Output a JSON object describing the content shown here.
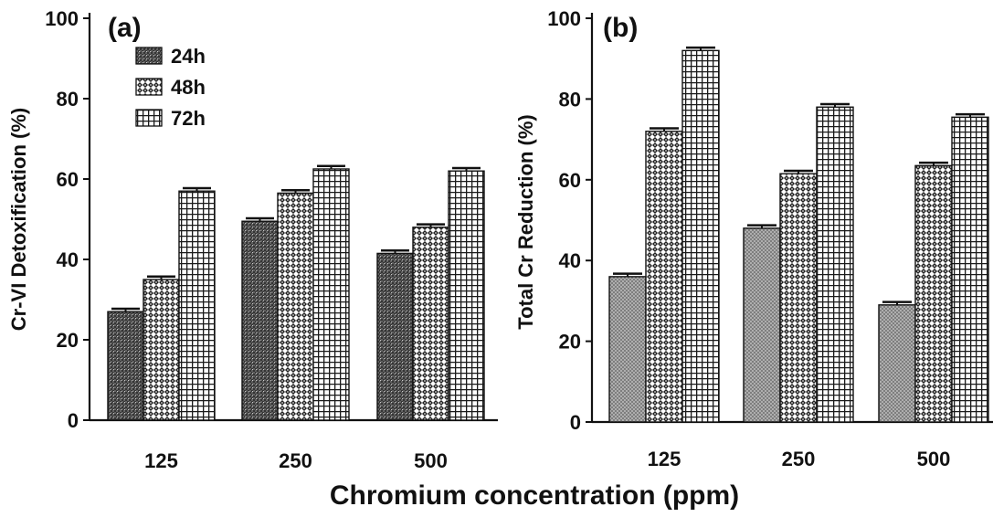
{
  "figure": {
    "xaxis_title": "Chromium concentration (ppm)"
  },
  "legend": {
    "items": [
      {
        "label": "24h",
        "pattern": "fine-crosshatch"
      },
      {
        "label": "48h",
        "pattern": "checker"
      },
      {
        "label": "72h",
        "pattern": "grid"
      }
    ]
  },
  "chart_data": [
    {
      "panel": "(a)",
      "type": "bar",
      "ylabel": "Cr-VI Detoxification (%)",
      "xlabel": "Chromium concentration (ppm)",
      "categories": [
        "125",
        "250",
        "500"
      ],
      "ylim": [
        0,
        100
      ],
      "yticks": [
        0,
        20,
        40,
        60,
        80,
        100
      ],
      "series": [
        {
          "name": "24h",
          "values": [
            27,
            49.5,
            41.5
          ],
          "errors": [
            0.5,
            0.5,
            0.5
          ]
        },
        {
          "name": "48h",
          "values": [
            35,
            56.5,
            48
          ],
          "errors": [
            0.5,
            0.5,
            0.5
          ]
        },
        {
          "name": "72h",
          "values": [
            57,
            62.5,
            62
          ],
          "errors": [
            0.5,
            0.5,
            0.5
          ]
        }
      ],
      "legend": "top-left",
      "grid": false
    },
    {
      "panel": "(b)",
      "type": "bar",
      "ylabel": "Total Cr Reduction (%)",
      "xlabel": "Chromium concentration (ppm)",
      "categories": [
        "125",
        "250",
        "500"
      ],
      "ylim": [
        0,
        100
      ],
      "yticks": [
        0,
        20,
        40,
        60,
        80,
        100
      ],
      "series": [
        {
          "name": "24h",
          "values": [
            36,
            48,
            29
          ],
          "errors": [
            0.5,
            0.5,
            0.5
          ]
        },
        {
          "name": "48h",
          "values": [
            72,
            61.5,
            63.5
          ],
          "errors": [
            0.5,
            0.5,
            0.5
          ]
        },
        {
          "name": "72h",
          "values": [
            92,
            78,
            75.5
          ],
          "errors": [
            0.5,
            0.5,
            0.5
          ]
        }
      ],
      "legend": "none",
      "grid": false
    }
  ]
}
